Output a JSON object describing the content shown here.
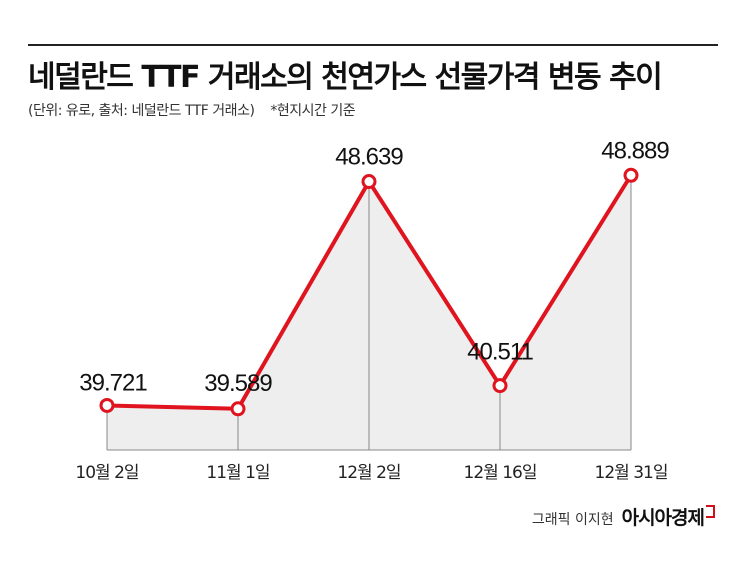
{
  "title": "네덜란드 TTF 거래소의 천연가스 선물가격 변동 추이",
  "subtitle": "(단위: 유로, 출처: 네덜란드 TTF 거래소)",
  "note": "*현지시간 기준",
  "credit": {
    "label": "그래픽 이지현",
    "brand": "아시아경제"
  },
  "colors": {
    "line": "#e0141e",
    "area": "#eeeeee",
    "marker_fill": "#ffffff"
  },
  "chart_data": {
    "type": "line",
    "categories": [
      "10월 2일",
      "11월 1일",
      "12월 2일",
      "12월 16일",
      "12월 31일"
    ],
    "values": [
      39.721,
      39.589,
      48.639,
      40.511,
      48.889
    ],
    "value_labels": [
      "39.721",
      "39.589",
      "48.639",
      "40.511",
      "48.889"
    ],
    "xlabel": "",
    "ylabel": "",
    "grid": false,
    "area_fill": true
  }
}
